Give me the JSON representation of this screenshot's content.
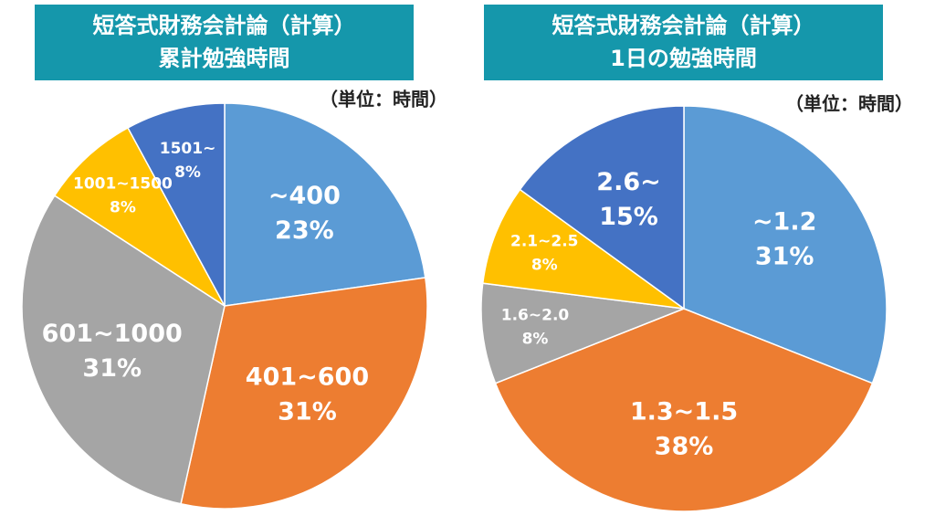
{
  "chart_data": [
    {
      "type": "pie",
      "title": "短答式財務会計論（計算）",
      "subtitle": "累計勉強時間",
      "unit": "（単位：時間）",
      "categories": [
        "~400",
        "401~600",
        "601~1000",
        "1001~1500",
        "1501~"
      ],
      "values": [
        23,
        31,
        31,
        8,
        8
      ],
      "value_labels": [
        "23%",
        "31%",
        "31%",
        "8%",
        "8%"
      ],
      "colors": [
        "#5b9bd5",
        "#ed7d31",
        "#a5a5a5",
        "#ffc000",
        "#4472c4"
      ]
    },
    {
      "type": "pie",
      "title": "短答式財務会計論（計算）",
      "subtitle": "1日の勉強時間",
      "unit": "（単位：時間）",
      "categories": [
        "~1.2",
        "1.3~1.5",
        "1.6~2.0",
        "2.1~2.5",
        "2.6~"
      ],
      "values": [
        31,
        38,
        8,
        8,
        15
      ],
      "value_labels": [
        "31%",
        "38%",
        "8%",
        "8%",
        "15%"
      ],
      "colors": [
        "#5b9bd5",
        "#ed7d31",
        "#a5a5a5",
        "#ffc000",
        "#4472c4"
      ]
    }
  ]
}
